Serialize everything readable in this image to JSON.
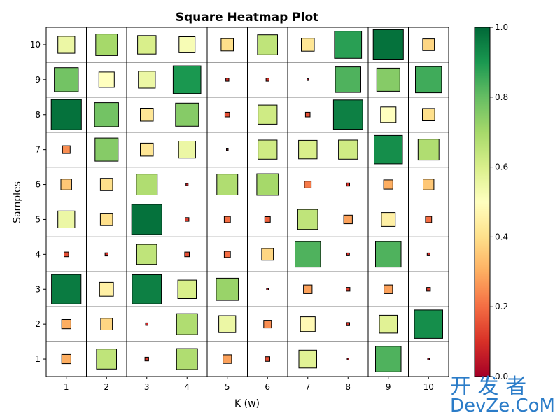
{
  "chart_data": {
    "type": "heatmap",
    "title": "Square Heatmap Plot",
    "xlabel": "K (w)",
    "ylabel": "Samples",
    "x": [
      1,
      2,
      3,
      4,
      5,
      6,
      7,
      8,
      9,
      10
    ],
    "y": [
      1,
      2,
      3,
      4,
      5,
      6,
      7,
      8,
      9,
      10
    ],
    "xlim": [
      0.5,
      10.5
    ],
    "ylim": [
      0.5,
      10.5
    ],
    "colormap": "RdYlGn",
    "colorbar": {
      "range": [
        0.0,
        1.0
      ],
      "ticks": [
        0.0,
        0.2,
        0.4,
        0.6,
        0.8,
        1.0
      ],
      "tick_labels": [
        "0.0",
        "0.2",
        "0.4",
        "0.6",
        "0.8",
        "1.0"
      ]
    },
    "grid": true,
    "values_by_sample": [
      [
        0.3,
        0.65,
        0.12,
        0.68,
        0.28,
        0.15,
        0.58,
        0.05,
        0.83,
        0.02
      ],
      [
        0.3,
        0.38,
        0.08,
        0.68,
        0.55,
        0.25,
        0.48,
        0.1,
        0.58,
        0.92
      ],
      [
        0.96,
        0.45,
        0.95,
        0.6,
        0.72,
        0.06,
        0.28,
        0.12,
        0.28,
        0.12
      ],
      [
        0.15,
        0.1,
        0.65,
        0.15,
        0.2,
        0.38,
        0.83,
        0.09,
        0.83,
        0.09
      ],
      [
        0.55,
        0.4,
        0.98,
        0.12,
        0.2,
        0.18,
        0.65,
        0.28,
        0.45,
        0.2
      ],
      [
        0.35,
        0.4,
        0.68,
        0.07,
        0.68,
        0.7,
        0.22,
        0.1,
        0.3,
        0.35
      ],
      [
        0.25,
        0.75,
        0.42,
        0.55,
        0.05,
        0.62,
        0.6,
        0.62,
        0.92,
        0.68
      ],
      [
        0.98,
        0.78,
        0.42,
        0.75,
        0.15,
        0.62,
        0.15,
        0.95,
        0.5,
        0.4
      ],
      [
        0.78,
        0.5,
        0.55,
        0.9,
        0.1,
        0.1,
        0.04,
        0.83,
        0.75,
        0.85
      ],
      [
        0.55,
        0.7,
        0.6,
        0.52,
        0.4,
        0.65,
        0.42,
        0.88,
        0.98,
        0.38
      ]
    ]
  },
  "watermark": {
    "cn": "开 发 者",
    "en": "DevZe.CoM"
  }
}
